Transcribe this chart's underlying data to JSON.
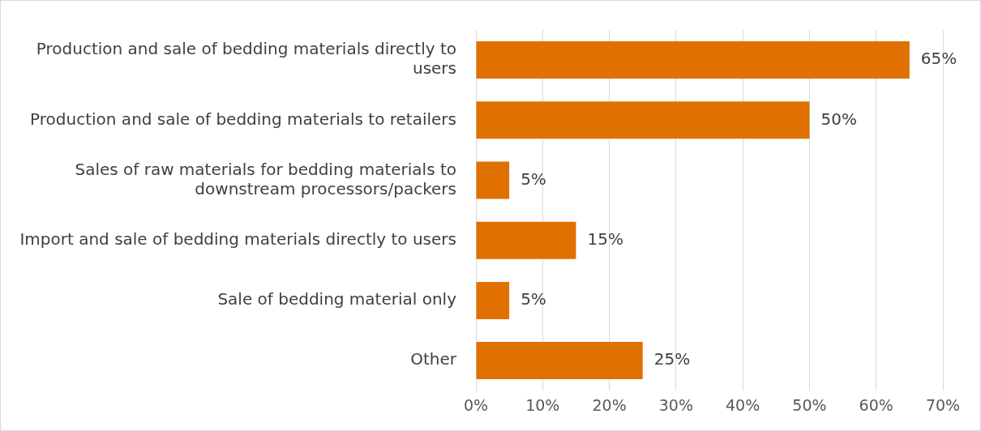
{
  "chart_data": {
    "type": "bar",
    "orientation": "horizontal",
    "categories": [
      "Production and sale of bedding materials directly to users",
      "Production and sale of bedding materials to retailers",
      "Sales of raw materials for bedding materials to downstream processors/packers",
      "Import and sale of bedding materials directly to users",
      "Sale of bedding material only",
      "Other"
    ],
    "values": [
      65,
      50,
      5,
      15,
      5,
      25
    ],
    "value_labels": [
      "65%",
      "50%",
      "5%",
      "15%",
      "5%",
      "25%"
    ],
    "color": "#e07000",
    "xlim": [
      0,
      70
    ],
    "xticks": [
      {
        "value": 0,
        "label": "0%"
      },
      {
        "value": 10,
        "label": "10%"
      },
      {
        "value": 20,
        "label": "20%"
      },
      {
        "value": 30,
        "label": "30%"
      },
      {
        "value": 40,
        "label": "40%"
      },
      {
        "value": 50,
        "label": "50%"
      },
      {
        "value": 60,
        "label": "60%"
      },
      {
        "value": 70,
        "label": "70%"
      }
    ],
    "grid": "x",
    "legend": false
  }
}
